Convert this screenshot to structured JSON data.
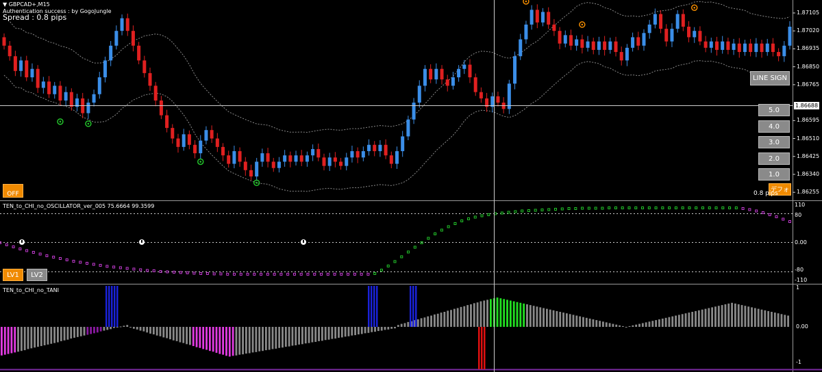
{
  "window": {
    "symbol": "GBPCAD+,M15",
    "auth_text": "Authentication success : by GogoJungle",
    "spread_text": "Spread : 0.8 pips",
    "spread_pips_small": "0.8 pips"
  },
  "buttons": {
    "line_sign": "LINE SIGN",
    "values": [
      "5.0",
      "4.0",
      "3.0",
      "2.0",
      "1.0"
    ],
    "default_label": "デフォルト",
    "off_label": "OFF",
    "lv1": "LV1",
    "lv2": "LV2"
  },
  "price_axis": {
    "ticks": [
      "1.87105",
      "1.87020",
      "1.86935",
      "1.86850",
      "1.86765",
      "1.86595",
      "1.86510",
      "1.86425",
      "1.86340",
      "1.86255"
    ],
    "current_price": "1.86688"
  },
  "oscillator": {
    "title": "TEN_to_CHI_no_OSCILLATOR_ver_005",
    "values_text": "75.6664 99.3599",
    "ticks": [
      "110",
      "80",
      "0.00",
      "-80",
      "-110"
    ]
  },
  "tani": {
    "title": "TEN_to_CHI_no_TANI",
    "ticks": [
      "1",
      "0.00",
      "-1"
    ]
  },
  "chart_data": [
    {
      "type": "candlestick",
      "title": "GBPCAD+,M15",
      "ylim": [
        1.8622,
        1.8716
      ],
      "y_ticks": [
        1.87105,
        1.8702,
        1.86935,
        1.8685,
        1.86765,
        1.86595,
        1.8651,
        1.86425,
        1.8634,
        1.86255
      ],
      "current_price": 1.86688,
      "close": [
        1.8695,
        1.869,
        1.8683,
        1.8688,
        1.868,
        1.8684,
        1.8675,
        1.8678,
        1.8672,
        1.8676,
        1.8669,
        1.8673,
        1.8666,
        1.867,
        1.8663,
        1.8668,
        1.8672,
        1.868,
        1.8688,
        1.8695,
        1.8702,
        1.8708,
        1.8702,
        1.8695,
        1.8688,
        1.8682,
        1.8676,
        1.8669,
        1.8662,
        1.8656,
        1.8651,
        1.8647,
        1.8653,
        1.8648,
        1.8644,
        1.865,
        1.8655,
        1.8651,
        1.8647,
        1.8643,
        1.8639,
        1.8645,
        1.864,
        1.8636,
        1.8633,
        1.864,
        1.8644,
        1.864,
        1.8637,
        1.864,
        1.8643,
        1.864,
        1.8643,
        1.864,
        1.8643,
        1.8646,
        1.8642,
        1.8638,
        1.8642,
        1.864,
        1.8638,
        1.8642,
        1.8645,
        1.8642,
        1.8645,
        1.8648,
        1.8645,
        1.8648,
        1.8643,
        1.8639,
        1.8645,
        1.8652,
        1.866,
        1.8668,
        1.8676,
        1.8684,
        1.8679,
        1.8684,
        1.8679,
        1.8676,
        1.868,
        1.8684,
        1.8686,
        1.868,
        1.8673,
        1.867,
        1.8666,
        1.8671,
        1.8668,
        1.8665,
        1.8677,
        1.869,
        1.8698,
        1.8705,
        1.8712,
        1.8706,
        1.8711,
        1.8705,
        1.8702,
        1.8696,
        1.87,
        1.8695,
        1.8698,
        1.8694,
        1.8697,
        1.8693,
        1.8697,
        1.8693,
        1.8697,
        1.8692,
        1.8688,
        1.8694,
        1.8699,
        1.8695,
        1.8701,
        1.8705,
        1.871,
        1.8703,
        1.8697,
        1.8703,
        1.871,
        1.8704,
        1.8699,
        1.8702,
        1.8697,
        1.8694,
        1.8697,
        1.8693,
        1.8697,
        1.8693,
        1.8696,
        1.8692,
        1.8696,
        1.8692,
        1.8696,
        1.8692,
        1.8696,
        1.8692,
        1.869,
        1.8695,
        1.8704
      ]
    },
    {
      "type": "scatter",
      "title": "TEN_to_CHI_no_OSCILLATOR_ver_005",
      "ylim": [
        -110,
        110
      ],
      "y_ticks": [
        110,
        80,
        0,
        -80,
        -110
      ],
      "values": [
        -0.0,
        -6.0,
        -12.0,
        -18.0,
        -23.0,
        -28.0,
        -33.0,
        -38.0,
        -42.0,
        -46.0,
        -50.0,
        -54.0,
        -57.0,
        -60.0,
        -63.0,
        -66.0,
        -69.0,
        -71.0,
        -73.0,
        -75.0,
        -77.0,
        -79.0,
        -81.0,
        -82.0,
        -84.0,
        -85.0,
        -86.0,
        -87.0,
        -88.0,
        -89.0,
        -90.0,
        -90.0,
        -91.0,
        -91.0,
        -92.0,
        -92.0,
        -92.0,
        -92.0,
        -92.0,
        -92.0,
        -92.0,
        -92.0,
        -92.0,
        -92.0,
        -92.0,
        -92.0,
        -92.0,
        -92.0,
        -92.0,
        -92.0,
        -92.0,
        -92.0,
        -92.0,
        -92.0,
        -92.0,
        -92.0,
        -90.0,
        -80.0,
        -68.0,
        -55.0,
        -41.0,
        -27.0,
        -13.0,
        0.0,
        13.0,
        26.0,
        37.0,
        47.0,
        56.0,
        64.0,
        70.0,
        75.0,
        79.0,
        82.0,
        85.0,
        87.0,
        89.0,
        91.0,
        93.0,
        94.0,
        95.0,
        96.0,
        97.0,
        98.0,
        99.0,
        100.0,
        100.0,
        101.0,
        101.0,
        101.0,
        101.0,
        102.0,
        102.0,
        102.0,
        102.0,
        102.0,
        102.0,
        102.0,
        102.0,
        102.0,
        102.0,
        102.0,
        102.0,
        102.0,
        102.0,
        102.0,
        102.0,
        102.0,
        102.0,
        102.0,
        102.0,
        100.0,
        97.0,
        93.0,
        88.0,
        82.0,
        76.0,
        69.0,
        62.0
      ]
    },
    {
      "type": "bar",
      "title": "TEN_to_CHI_no_TANI",
      "ylim": [
        -1,
        1
      ],
      "y_ticks": [
        1,
        0,
        -1
      ],
      "values": [
        -0.76,
        -0.74,
        -0.72,
        -0.7,
        -0.68,
        -0.66,
        -0.64,
        -0.62,
        -0.59,
        -0.57,
        -0.55,
        -0.53,
        -0.51,
        -0.49,
        -0.47,
        -0.45,
        -0.43,
        -0.41,
        -0.38,
        -0.36,
        -0.34,
        -0.31,
        -0.29,
        -0.27,
        -0.25,
        -0.23,
        -0.21,
        -0.19,
        -0.17,
        -0.15,
        -0.12,
        -0.1,
        -0.08,
        -0.06,
        -0.03,
        -0.01,
        0.01,
        0.03,
        0.05,
        -0.02,
        -0.05,
        -0.07,
        -0.1,
        -0.12,
        -0.15,
        -0.18,
        -0.2,
        -0.23,
        -0.25,
        -0.28,
        -0.3,
        -0.33,
        -0.36,
        -0.38,
        -0.41,
        -0.43,
        -0.46,
        -0.48,
        -0.51,
        -0.54,
        -0.56,
        -0.59,
        -0.61,
        -0.64,
        -0.66,
        -0.69,
        -0.72,
        -0.74,
        -0.77,
        -0.79,
        -0.77,
        -0.76,
        -0.74,
        -0.73,
        -0.71,
        -0.7,
        -0.68,
        -0.67,
        -0.65,
        -0.64,
        -0.62,
        -0.61,
        -0.59,
        -0.58,
        -0.56,
        -0.55,
        -0.53,
        -0.52,
        -0.5,
        -0.49,
        -0.47,
        -0.46,
        -0.44,
        -0.43,
        -0.41,
        -0.4,
        -0.38,
        -0.37,
        -0.35,
        -0.34,
        -0.32,
        -0.31,
        -0.29,
        -0.28,
        -0.26,
        -0.25,
        -0.23,
        -0.22,
        -0.2,
        -0.19,
        -0.17,
        -0.16,
        -0.14,
        -0.13,
        -0.11,
        -0.1,
        -0.08,
        -0.07,
        -0.05,
        -0.04,
        0.05,
        0.08,
        0.1,
        0.13,
        0.15,
        0.18,
        0.2,
        0.23,
        0.25,
        0.28,
        0.3,
        0.33,
        0.35,
        0.38,
        0.4,
        0.43,
        0.45,
        0.48,
        0.5,
        0.53,
        0.55,
        0.58,
        0.6,
        0.63,
        0.65,
        0.68,
        0.7,
        0.72,
        0.74,
        0.76,
        0.78,
        0.76,
        0.74,
        0.72,
        0.7,
        0.68,
        0.66,
        0.64,
        0.62,
        0.6,
        0.58,
        0.56,
        0.54,
        0.52,
        0.5,
        0.48,
        0.46,
        0.44,
        0.42,
        0.4,
        0.38,
        0.36,
        0.34,
        0.32,
        0.3,
        0.28,
        0.26,
        0.24,
        0.22,
        0.2,
        0.18,
        0.16,
        0.14,
        0.12,
        0.1,
        0.08,
        0.06,
        0.04,
        0.02,
        0.0,
        0.02,
        0.04,
        0.06,
        0.08,
        0.1,
        0.12,
        0.14,
        0.16,
        0.18,
        0.2,
        0.22,
        0.24,
        0.26,
        0.28,
        0.3,
        0.32,
        0.34,
        0.36,
        0.38,
        0.4,
        0.42,
        0.44,
        0.46,
        0.48,
        0.5,
        0.52,
        0.54,
        0.56,
        0.58,
        0.6,
        0.62,
        0.64,
        0.62,
        0.6,
        0.58,
        0.56,
        0.54,
        0.52,
        0.5,
        0.48,
        0.46,
        0.44,
        0.42,
        0.4,
        0.38,
        0.36,
        0.34,
        0.32,
        0.3
      ]
    }
  ],
  "colors": {
    "bull": "#3b8ee8",
    "bear": "#e02020",
    "band": "#8c8c8c",
    "osc_down": "#c23bd0",
    "osc_up": "#22c32a",
    "tani_gray": "#8a8a8a",
    "tani_magenta": "#e23be2",
    "tani_purple": "#8a1aa0",
    "tani_blue": "#1a22d8",
    "tani_green": "#22e022",
    "tani_red": "#e01010",
    "sell_marker": "#f08a00",
    "buy_marker": "#22c32a"
  }
}
